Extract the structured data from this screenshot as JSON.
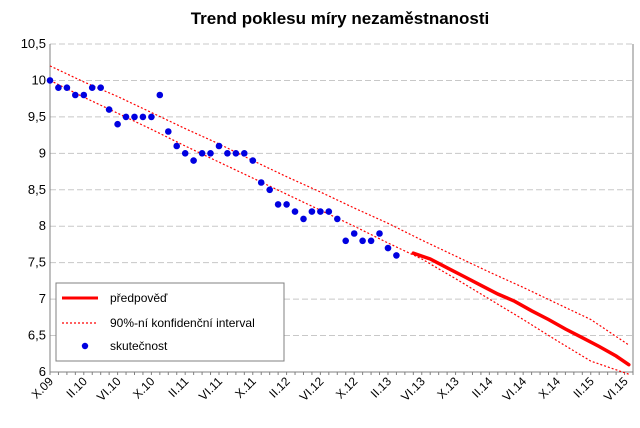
{
  "chart_data": {
    "type": "scatter",
    "title": "Trend poklesu míry nezaměstnanosti",
    "xlabel": "",
    "ylabel": "",
    "ylim": [
      6,
      10.5
    ],
    "yticks": [
      "10,5",
      "10",
      "9,5",
      "9",
      "8,5",
      "8",
      "7,5",
      "7",
      "6,5",
      "6"
    ],
    "ytick_values": [
      10.5,
      10,
      9.5,
      9,
      8.5,
      8,
      7.5,
      7,
      6.5,
      6
    ],
    "x_range_months": [
      0,
      69
    ],
    "xticks": [
      {
        "label": "X.09",
        "m": 0
      },
      {
        "label": "II.10",
        "m": 4
      },
      {
        "label": "VI.10",
        "m": 8
      },
      {
        "label": "X.10",
        "m": 12
      },
      {
        "label": "II.11",
        "m": 16
      },
      {
        "label": "VI.11",
        "m": 20
      },
      {
        "label": "X.11",
        "m": 24
      },
      {
        "label": "II.12",
        "m": 28
      },
      {
        "label": "VI.12",
        "m": 32
      },
      {
        "label": "X.12",
        "m": 36
      },
      {
        "label": "II.13",
        "m": 40
      },
      {
        "label": "VI.13",
        "m": 44
      },
      {
        "label": "X.13",
        "m": 48
      },
      {
        "label": "II.14",
        "m": 52
      },
      {
        "label": "VI.14",
        "m": 56
      },
      {
        "label": "X.14",
        "m": 60
      },
      {
        "label": "II.15",
        "m": 64
      },
      {
        "label": "VI.15",
        "m": 68
      }
    ],
    "series": [
      {
        "name": "předpověď",
        "kind": "line",
        "color": "#ff0000",
        "x": [
          43,
          45,
          47,
          49,
          51,
          53,
          55,
          57,
          59,
          61,
          63,
          65,
          67,
          68.5
        ],
        "y": [
          7.63,
          7.55,
          7.43,
          7.31,
          7.19,
          7.07,
          6.97,
          6.84,
          6.72,
          6.59,
          6.47,
          6.35,
          6.22,
          6.1
        ]
      },
      {
        "name": "90%-ní konfidenční interval",
        "kind": "dotted",
        "color": "#ff0000",
        "bands": [
          {
            "x": [
              0,
              4,
              8,
              12,
              16,
              20,
              24,
              28,
              32,
              36,
              40,
              44,
              48,
              52,
              56,
              60,
              64,
              68.5
            ],
            "y": [
              10.2,
              9.98,
              9.78,
              9.56,
              9.34,
              9.13,
              8.9,
              8.68,
              8.47,
              8.25,
              8.04,
              7.81,
              7.59,
              7.37,
              7.16,
              6.94,
              6.72,
              6.37
            ]
          },
          {
            "x": [
              0,
              4,
              8,
              12,
              16,
              20,
              24,
              28,
              32,
              36,
              40,
              44,
              48,
              52,
              56,
              60,
              64,
              68.5
            ],
            "y": [
              10.0,
              9.77,
              9.55,
              9.33,
              9.1,
              8.88,
              8.66,
              8.44,
              8.22,
              8.0,
              7.77,
              7.55,
              7.28,
              7.0,
              6.72,
              6.43,
              6.15,
              5.97
            ]
          }
        ]
      },
      {
        "name": "skutečnost",
        "kind": "scatter",
        "color": "#0000e0",
        "x": [
          0,
          1,
          2,
          3,
          4,
          5,
          6,
          7,
          8,
          9,
          10,
          11,
          12,
          13,
          14,
          15,
          16,
          17,
          18,
          19,
          20,
          21,
          22,
          23,
          24,
          25,
          26,
          27,
          28,
          29,
          30,
          31,
          32,
          33,
          34,
          35,
          36,
          37,
          38,
          39,
          40,
          41
        ],
        "y": [
          10.0,
          9.9,
          9.9,
          9.8,
          9.8,
          9.9,
          9.9,
          9.6,
          9.4,
          9.5,
          9.5,
          9.5,
          9.5,
          9.8,
          9.3,
          9.1,
          9.0,
          8.9,
          9.0,
          9.0,
          9.1,
          9.0,
          9.0,
          9.0,
          8.9,
          8.6,
          8.5,
          8.3,
          8.3,
          8.2,
          8.1,
          8.2,
          8.2,
          8.2,
          8.1,
          7.8,
          7.9,
          7.8,
          7.8,
          7.9,
          7.7,
          7.6
        ]
      }
    ],
    "legend": {
      "placement": "bottom-left",
      "entries": [
        "předpověď",
        "90%-ní konfidenční interval",
        "skutečnost"
      ]
    }
  }
}
